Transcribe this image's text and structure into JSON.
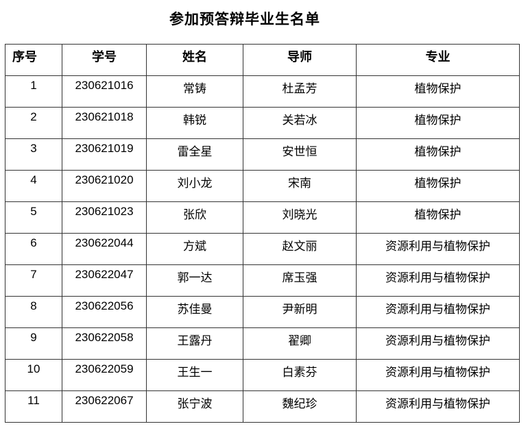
{
  "title": "参加预答辩毕业生名单",
  "headers": [
    "序号",
    "学号",
    "姓名",
    "导师",
    "专业"
  ],
  "rows": [
    [
      "1",
      "230621016",
      "常铸",
      "杜孟芳",
      "植物保护"
    ],
    [
      "2",
      "230621018",
      "韩锐",
      "关若冰",
      "植物保护"
    ],
    [
      "3",
      "230621019",
      "雷全星",
      "安世恒",
      "植物保护"
    ],
    [
      "4",
      "230621020",
      "刘小龙",
      "宋南",
      "植物保护"
    ],
    [
      "5",
      "230621023",
      "张欣",
      "刘晓光",
      "植物保护"
    ],
    [
      "6",
      "230622044",
      "方斌",
      "赵文丽",
      "资源利用与植物保护"
    ],
    [
      "7",
      "230622047",
      "郭一达",
      "席玉强",
      "资源利用与植物保护"
    ],
    [
      "8",
      "230622056",
      "苏佳曼",
      "尹新明",
      "资源利用与植物保护"
    ],
    [
      "9",
      "230622058",
      "王露丹",
      "翟卿",
      "资源利用与植物保护"
    ],
    [
      "10",
      "230622059",
      "王生一",
      "白素芬",
      "资源利用与植物保护"
    ],
    [
      "11",
      "230622067",
      "张宁波",
      "魏纪珍",
      "资源利用与植物保护"
    ]
  ]
}
